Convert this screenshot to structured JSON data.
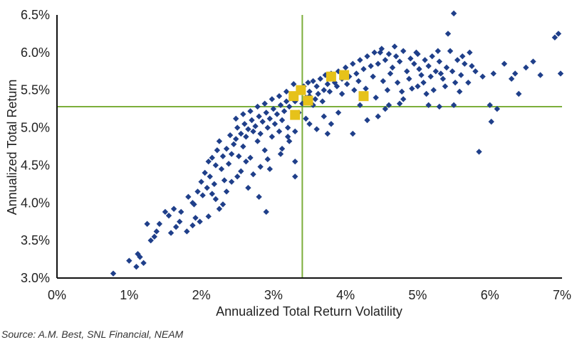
{
  "chart_data": {
    "type": "scatter",
    "xlabel": "Annualized Total Return Volatility",
    "ylabel": "Annualized Total Return",
    "xlim": [
      0,
      7
    ],
    "ylim": [
      3.0,
      6.5
    ],
    "x_ticks": [
      "0%",
      "1%",
      "2%",
      "3%",
      "4%",
      "5%",
      "6%",
      "7%"
    ],
    "y_ticks": [
      "3.0%",
      "3.5%",
      "4.0%",
      "4.5%",
      "5.0%",
      "5.5%",
      "6.0%",
      "6.5%"
    ],
    "reference_lines": {
      "x": 3.4,
      "y": 5.28,
      "color": "#7cae3a"
    },
    "grid": false,
    "source": "Source: A.M. Best, SNL Financial, NEAM",
    "colors": {
      "points": "#1f3f8a",
      "highlight": "#e6c21a"
    },
    "series": [
      {
        "marker": "diamond",
        "points": [
          [
            0.78,
            3.06
          ],
          [
            1.0,
            3.23
          ],
          [
            1.12,
            3.32
          ],
          [
            1.2,
            3.2
          ],
          [
            1.15,
            3.28
          ],
          [
            1.25,
            3.72
          ],
          [
            1.35,
            3.55
          ],
          [
            1.38,
            3.62
          ],
          [
            1.5,
            3.88
          ],
          [
            1.55,
            3.83
          ],
          [
            1.62,
            3.92
          ],
          [
            1.7,
            3.75
          ],
          [
            1.65,
            3.68
          ],
          [
            1.8,
            3.62
          ],
          [
            1.82,
            4.08
          ],
          [
            1.88,
            4.0
          ],
          [
            1.9,
            3.98
          ],
          [
            1.95,
            4.15
          ],
          [
            2.0,
            4.28
          ],
          [
            2.02,
            4.1
          ],
          [
            1.92,
            3.8
          ],
          [
            2.05,
            4.4
          ],
          [
            2.08,
            4.2
          ],
          [
            2.1,
            4.55
          ],
          [
            2.12,
            4.35
          ],
          [
            2.15,
            4.6
          ],
          [
            2.18,
            4.25
          ],
          [
            2.2,
            4.5
          ],
          [
            2.22,
            4.7
          ],
          [
            2.25,
            4.82
          ],
          [
            2.28,
            4.45
          ],
          [
            2.3,
            4.62
          ],
          [
            2.32,
            4.3
          ],
          [
            2.35,
            4.72
          ],
          [
            2.38,
            4.52
          ],
          [
            2.4,
            4.9
          ],
          [
            2.42,
            4.65
          ],
          [
            2.45,
            4.78
          ],
          [
            2.48,
            4.85
          ],
          [
            2.5,
            5.0
          ],
          [
            2.52,
            4.62
          ],
          [
            2.55,
            4.92
          ],
          [
            2.58,
            4.75
          ],
          [
            2.6,
            5.05
          ],
          [
            2.62,
            4.88
          ],
          [
            2.65,
            4.98
          ],
          [
            2.68,
            4.6
          ],
          [
            2.7,
            5.1
          ],
          [
            2.72,
            4.95
          ],
          [
            2.75,
            5.02
          ],
          [
            2.78,
            4.82
          ],
          [
            2.8,
            5.15
          ],
          [
            2.82,
            4.92
          ],
          [
            2.85,
            5.08
          ],
          [
            2.88,
            4.7
          ],
          [
            2.9,
            5.2
          ],
          [
            2.92,
            5.0
          ],
          [
            2.95,
            5.12
          ],
          [
            2.98,
            4.88
          ],
          [
            3.0,
            5.25
          ],
          [
            3.02,
            5.05
          ],
          [
            3.05,
            5.18
          ],
          [
            3.08,
            4.95
          ],
          [
            3.1,
            5.3
          ],
          [
            3.12,
            5.1
          ],
          [
            3.15,
            5.22
          ],
          [
            3.18,
            5.35
          ],
          [
            3.2,
            5.0
          ],
          [
            3.22,
            5.28
          ],
          [
            3.25,
            5.4
          ],
          [
            3.28,
            5.15
          ],
          [
            3.3,
            5.35
          ],
          [
            3.32,
            5.45
          ],
          [
            3.35,
            5.2
          ],
          [
            3.38,
            5.5
          ],
          [
            3.4,
            5.32
          ],
          [
            3.42,
            5.55
          ],
          [
            3.45,
            5.4
          ],
          [
            3.48,
            5.6
          ],
          [
            3.5,
            5.48
          ],
          [
            3.55,
            5.62
          ],
          [
            3.58,
            5.38
          ],
          [
            3.6,
            5.55
          ],
          [
            3.65,
            5.65
          ],
          [
            3.7,
            5.5
          ],
          [
            3.72,
            5.7
          ],
          [
            3.75,
            5.58
          ],
          [
            3.8,
            5.72
          ],
          [
            3.85,
            5.6
          ],
          [
            3.9,
            5.75
          ],
          [
            3.95,
            5.65
          ],
          [
            4.0,
            5.8
          ],
          [
            4.05,
            5.68
          ],
          [
            4.1,
            5.85
          ],
          [
            4.15,
            5.72
          ],
          [
            4.2,
            5.9
          ],
          [
            4.25,
            5.78
          ],
          [
            4.3,
            5.95
          ],
          [
            4.35,
            5.82
          ],
          [
            4.4,
            6.0
          ],
          [
            4.45,
            5.85
          ],
          [
            4.5,
            6.05
          ],
          [
            4.55,
            5.9
          ],
          [
            4.6,
            5.98
          ],
          [
            4.65,
            5.8
          ],
          [
            4.7,
            5.95
          ],
          [
            4.75,
            5.88
          ],
          [
            4.8,
            6.02
          ],
          [
            4.85,
            5.75
          ],
          [
            4.9,
            5.92
          ],
          [
            4.95,
            5.85
          ],
          [
            5.0,
            5.98
          ],
          [
            5.05,
            5.7
          ],
          [
            5.1,
            5.9
          ],
          [
            5.15,
            5.82
          ],
          [
            5.2,
            5.95
          ],
          [
            5.25,
            5.75
          ],
          [
            5.3,
            5.88
          ],
          [
            5.35,
            5.65
          ],
          [
            5.4,
            5.8
          ],
          [
            5.45,
            6.02
          ],
          [
            5.5,
            6.52
          ],
          [
            5.42,
            6.25
          ],
          [
            5.55,
            5.9
          ],
          [
            5.6,
            5.7
          ],
          [
            5.65,
            5.85
          ],
          [
            5.7,
            5.6
          ],
          [
            5.75,
            5.82
          ],
          [
            5.8,
            5.75
          ],
          [
            5.9,
            5.68
          ],
          [
            6.0,
            5.3
          ],
          [
            6.02,
            5.08
          ],
          [
            6.05,
            5.72
          ],
          [
            5.85,
            4.68
          ],
          [
            6.2,
            5.85
          ],
          [
            6.3,
            5.65
          ],
          [
            6.35,
            5.72
          ],
          [
            6.5,
            5.8
          ],
          [
            6.6,
            5.88
          ],
          [
            6.7,
            5.7
          ],
          [
            6.9,
            6.2
          ],
          [
            6.95,
            6.25
          ],
          [
            6.98,
            5.72
          ],
          [
            6.4,
            5.45
          ],
          [
            6.1,
            5.25
          ],
          [
            5.3,
            5.28
          ],
          [
            5.0,
            5.55
          ],
          [
            4.8,
            5.38
          ],
          [
            4.6,
            5.3
          ],
          [
            4.3,
            5.1
          ],
          [
            4.1,
            4.92
          ],
          [
            3.9,
            5.2
          ],
          [
            3.7,
            5.15
          ],
          [
            3.6,
            4.98
          ],
          [
            3.5,
            5.05
          ],
          [
            3.45,
            5.12
          ],
          [
            3.3,
            4.55
          ],
          [
            3.3,
            4.35
          ],
          [
            3.1,
            4.65
          ],
          [
            2.95,
            4.45
          ],
          [
            2.9,
            3.88
          ],
          [
            2.8,
            4.08
          ],
          [
            2.65,
            4.2
          ],
          [
            2.5,
            4.35
          ],
          [
            2.42,
            4.28
          ],
          [
            2.3,
            3.98
          ],
          [
            2.2,
            4.05
          ],
          [
            2.1,
            3.82
          ],
          [
            3.5,
            5.42
          ],
          [
            3.55,
            5.3
          ],
          [
            3.62,
            5.45
          ],
          [
            3.68,
            5.35
          ],
          [
            3.78,
            5.48
          ],
          [
            3.88,
            5.55
          ],
          [
            3.95,
            5.45
          ],
          [
            4.02,
            5.58
          ],
          [
            4.12,
            5.5
          ],
          [
            4.18,
            5.62
          ],
          [
            4.28,
            5.52
          ],
          [
            4.38,
            5.68
          ],
          [
            4.42,
            5.4
          ],
          [
            4.52,
            5.62
          ],
          [
            4.58,
            5.5
          ],
          [
            4.62,
            5.72
          ],
          [
            4.72,
            5.6
          ],
          [
            4.78,
            5.48
          ],
          [
            4.88,
            5.65
          ],
          [
            4.92,
            5.52
          ],
          [
            5.02,
            5.78
          ],
          [
            5.08,
            5.6
          ],
          [
            5.12,
            5.45
          ],
          [
            5.18,
            5.68
          ],
          [
            5.22,
            5.5
          ],
          [
            5.32,
            5.72
          ],
          [
            5.38,
            5.55
          ],
          [
            5.48,
            5.75
          ],
          [
            5.52,
            5.6
          ],
          [
            5.58,
            5.48
          ],
          [
            2.88,
            5.32
          ],
          [
            2.78,
            5.28
          ],
          [
            2.68,
            5.22
          ],
          [
            2.58,
            5.18
          ],
          [
            2.48,
            5.12
          ],
          [
            2.98,
            5.38
          ],
          [
            3.08,
            5.42
          ],
          [
            3.18,
            5.48
          ],
          [
            3.28,
            5.58
          ],
          [
            3.12,
            4.72
          ],
          [
            3.22,
            4.82
          ],
          [
            2.92,
            4.58
          ],
          [
            2.82,
            4.48
          ],
          [
            2.72,
            4.38
          ],
          [
            2.62,
            4.55
          ],
          [
            2.55,
            4.42
          ],
          [
            2.35,
            4.15
          ],
          [
            2.25,
            3.92
          ],
          [
            2.15,
            4.12
          ],
          [
            1.98,
            3.75
          ],
          [
            1.88,
            3.7
          ],
          [
            1.72,
            3.88
          ],
          [
            1.58,
            3.6
          ],
          [
            1.42,
            3.72
          ],
          [
            1.3,
            3.5
          ],
          [
            1.1,
            3.15
          ],
          [
            4.48,
            6.0
          ],
          [
            4.68,
            6.08
          ],
          [
            4.98,
            6.0
          ],
          [
            5.28,
            6.02
          ],
          [
            5.62,
            5.95
          ],
          [
            5.72,
            6.0
          ],
          [
            4.2,
            5.3
          ],
          [
            4.45,
            5.15
          ],
          [
            4.55,
            5.25
          ],
          [
            4.75,
            5.32
          ],
          [
            5.15,
            5.3
          ],
          [
            5.5,
            5.3
          ],
          [
            3.8,
            5.05
          ],
          [
            3.75,
            4.92
          ],
          [
            3.3,
            4.95
          ],
          [
            3.2,
            4.88
          ]
        ]
      },
      {
        "marker": "square",
        "points": [
          [
            3.28,
            5.42
          ],
          [
            3.38,
            5.5
          ],
          [
            3.48,
            5.36
          ],
          [
            3.3,
            5.17
          ],
          [
            3.8,
            5.68
          ],
          [
            3.98,
            5.7
          ],
          [
            4.25,
            5.42
          ]
        ]
      }
    ]
  }
}
